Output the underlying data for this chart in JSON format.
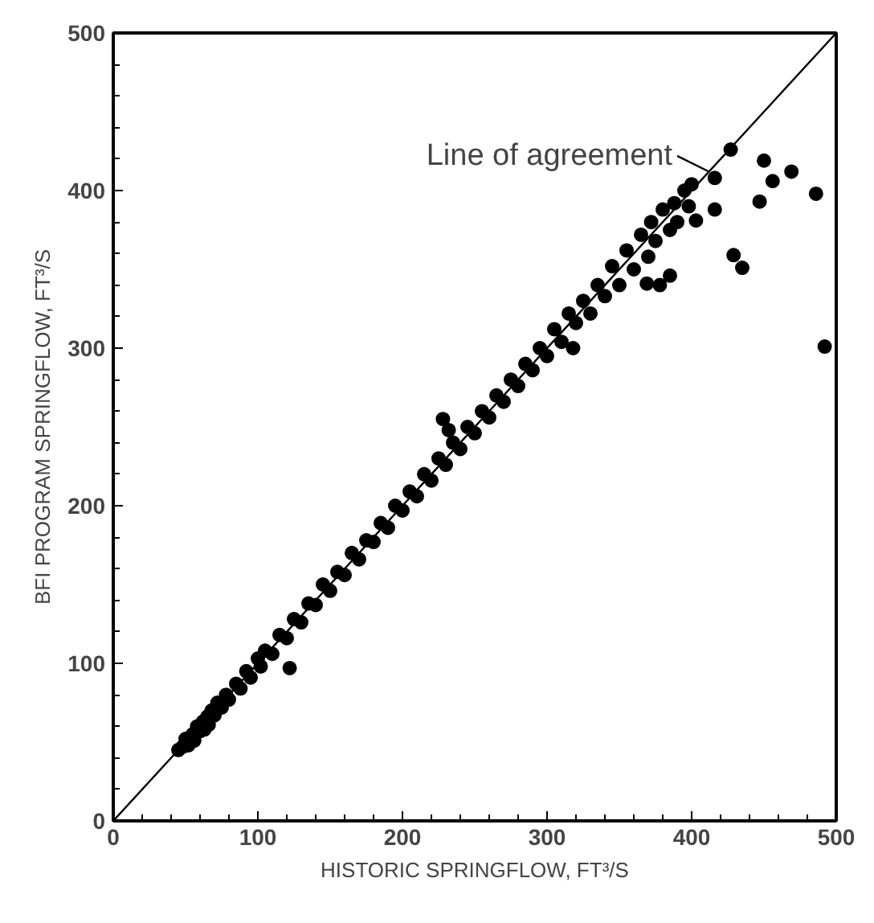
{
  "chart_data": {
    "type": "scatter",
    "xlabel": "HISTORIC SPRINGFLOW, FT³/S",
    "ylabel": "BFI PROGRAM SPRINGFLOW, FT³/S",
    "xlim": [
      0,
      500
    ],
    "ylim": [
      0,
      500
    ],
    "xticks": [
      0,
      100,
      200,
      300,
      400,
      500
    ],
    "yticks": [
      0,
      100,
      200,
      300,
      400,
      500
    ],
    "grid": false,
    "annotations": [
      {
        "text": "Line of agreement",
        "x": 412,
        "y": 412
      }
    ],
    "series": [
      {
        "type": "scatter",
        "marker": "circle",
        "color": "#000000",
        "x": [
          45,
          48,
          50,
          52,
          55,
          56,
          58,
          60,
          62,
          63,
          65,
          66,
          68,
          70,
          72,
          75,
          78,
          80,
          85,
          88,
          92,
          95,
          100,
          102,
          105,
          110,
          115,
          120,
          122,
          125,
          130,
          135,
          140,
          145,
          150,
          155,
          160,
          165,
          170,
          175,
          180,
          185,
          190,
          195,
          200,
          205,
          210,
          215,
          220,
          225,
          228,
          232,
          230,
          235,
          240,
          245,
          250,
          255,
          260,
          265,
          270,
          275,
          280,
          285,
          290,
          295,
          300,
          305,
          310,
          315,
          318,
          320,
          325,
          330,
          335,
          340,
          345,
          350,
          355,
          360,
          365,
          370,
          372,
          375,
          380,
          385,
          388,
          390,
          395,
          398,
          400,
          427,
          450,
          456,
          469,
          486,
          447,
          416,
          416,
          403,
          429,
          435,
          385,
          378,
          369,
          492
        ],
        "values": [
          45,
          47,
          52,
          48,
          55,
          51,
          60,
          57,
          63,
          58,
          66,
          61,
          70,
          67,
          75,
          72,
          80,
          77,
          87,
          84,
          95,
          91,
          103,
          98,
          108,
          106,
          118,
          116,
          97,
          128,
          126,
          138,
          137,
          150,
          146,
          158,
          156,
          170,
          166,
          178,
          177,
          189,
          186,
          200,
          197,
          209,
          206,
          220,
          216,
          230,
          255,
          248,
          226,
          240,
          236,
          250,
          246,
          260,
          256,
          270,
          266,
          280,
          276,
          290,
          286,
          300,
          295,
          312,
          304,
          322,
          300,
          316,
          330,
          322,
          340,
          333,
          352,
          340,
          362,
          350,
          372,
          358,
          380,
          368,
          388,
          375,
          392,
          380,
          400,
          390,
          404,
          426,
          419,
          406,
          412,
          398,
          393,
          408,
          388,
          381,
          359,
          351,
          346,
          340,
          341,
          301
        ]
      },
      {
        "type": "line",
        "color": "#000000",
        "x": [
          0,
          500
        ],
        "values": [
          0,
          500
        ]
      }
    ]
  }
}
